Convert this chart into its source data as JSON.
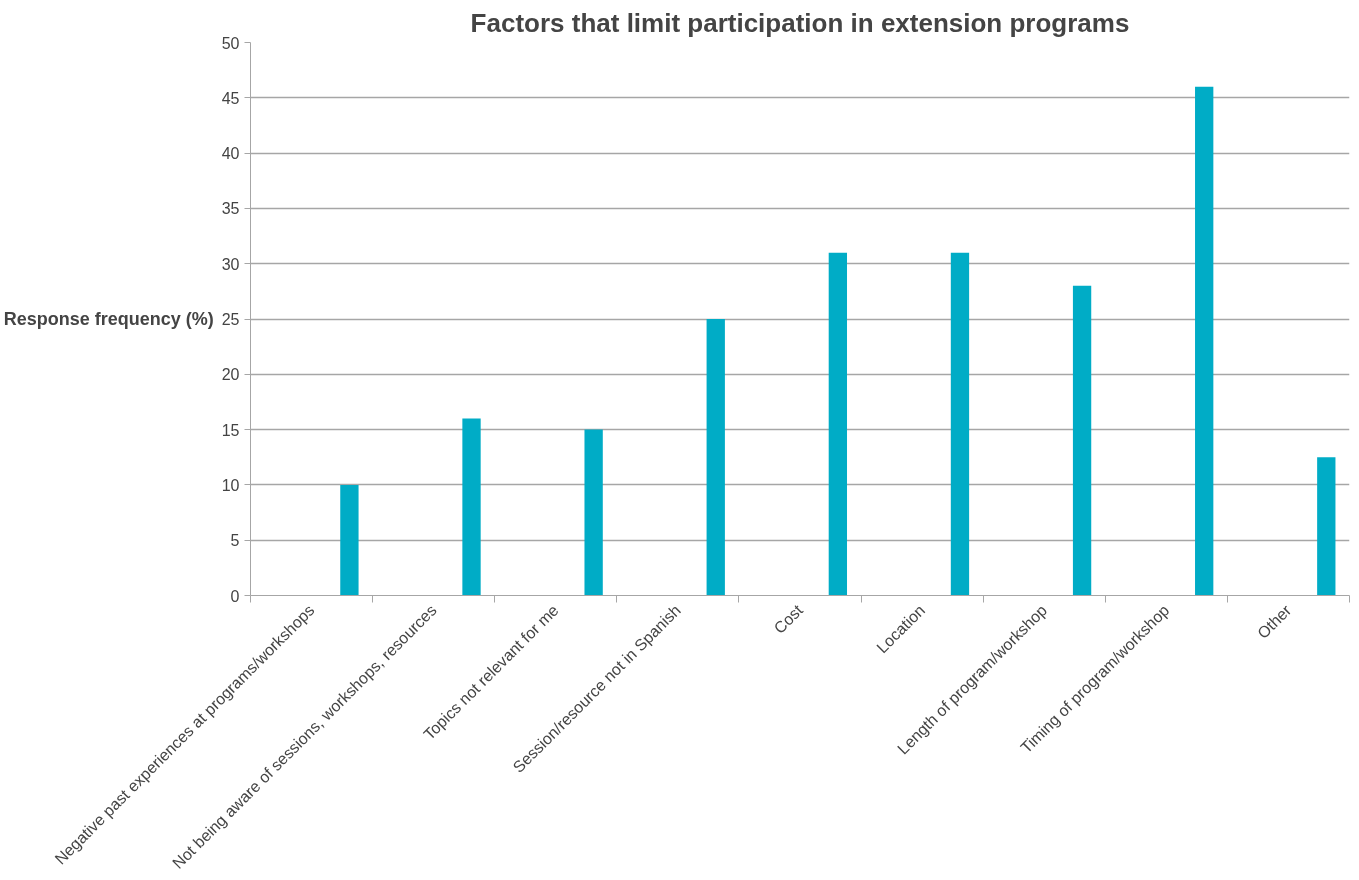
{
  "chart_data": {
    "type": "bar",
    "title": "Factors that limit participation in extension programs",
    "ylabel": "Response frequency (%)",
    "categories": [
      "Negative past experiences at programs/workshops",
      "Not being aware of sessions, workshops, resources",
      "Topics not relevant for me",
      "Session/resource not in Spanish",
      "Cost",
      "Location",
      "Length of program/workshop",
      "Timing of program/workshop",
      "Other"
    ],
    "values": [
      10,
      16,
      15,
      25,
      31,
      31,
      28,
      46,
      12.5
    ],
    "color": "#00acc6",
    "ylim": [
      0,
      50
    ],
    "yticks": [
      0,
      5,
      10,
      15,
      20,
      25,
      30,
      35,
      40,
      45,
      50
    ],
    "grid": "y"
  }
}
